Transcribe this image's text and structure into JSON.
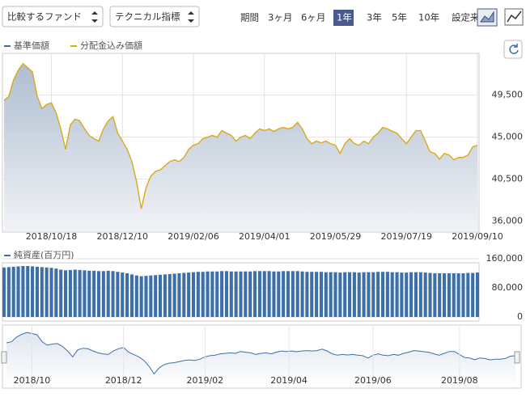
{
  "toolbar": {
    "selects": [
      "比較するファンド",
      "テクニカル指標"
    ],
    "period_label": "期間",
    "periods": [
      "3ヶ月",
      "6ヶ月",
      "1年",
      "3年",
      "5年",
      "10年",
      "設定来"
    ],
    "active_period": 2
  },
  "chart_data": [
    {
      "type": "line",
      "series": [
        {
          "name": "基準価額",
          "color": "#3d6fa8",
          "values": [
            48940,
            49370,
            51120,
            52170,
            52870,
            52430,
            51990,
            49370,
            48060,
            48500,
            48670,
            47620,
            45880,
            43690,
            46310,
            46930,
            46750,
            45880,
            45180,
            44830,
            44570,
            45880,
            46750,
            47190,
            45440,
            44570,
            43690,
            42380,
            40200,
            37310,
            39580,
            40810,
            41330,
            41510,
            41940,
            42380,
            42560,
            42380,
            42820,
            43690,
            44130,
            44300,
            44830,
            45000,
            45180,
            45000,
            45700,
            45440,
            45180,
            44570,
            45000,
            45180,
            44830,
            45440,
            45880,
            45700,
            45880,
            45610,
            45880,
            46050,
            45880,
            46050,
            46580,
            45880,
            44830,
            44300,
            44570,
            44390,
            44570,
            44300,
            44130,
            43250,
            44300,
            44830,
            44300,
            44130,
            44570,
            44300,
            45000,
            45440,
            46050,
            45880,
            45610,
            45440,
            44830,
            44300,
            45000,
            45700,
            45700,
            44570,
            43430,
            43250,
            42640,
            43250,
            43080,
            42560,
            42820,
            42820,
            43080,
            43950,
            44130
          ]
        },
        {
          "name": "分配金込み価額",
          "color": "#e3a90c",
          "values": [
            48940,
            49370,
            51120,
            52170,
            52870,
            52430,
            51990,
            49370,
            48060,
            48500,
            48670,
            47620,
            45880,
            43690,
            46310,
            46930,
            46750,
            45880,
            45180,
            44830,
            44570,
            45880,
            46750,
            47190,
            45440,
            44570,
            43690,
            42380,
            40200,
            37310,
            39580,
            40810,
            41330,
            41510,
            41940,
            42380,
            42560,
            42380,
            42820,
            43690,
            44130,
            44300,
            44830,
            45000,
            45180,
            45000,
            45700,
            45440,
            45180,
            44570,
            45000,
            45180,
            44830,
            45440,
            45880,
            45700,
            45880,
            45610,
            45880,
            46050,
            45880,
            46050,
            46580,
            45880,
            44830,
            44300,
            44570,
            44390,
            44570,
            44300,
            44130,
            43250,
            44300,
            44830,
            44300,
            44130,
            44570,
            44300,
            45000,
            45440,
            46050,
            45880,
            45610,
            45440,
            44830,
            44300,
            45000,
            45700,
            45700,
            44570,
            43430,
            43250,
            42640,
            43250,
            43080,
            42560,
            42820,
            42820,
            43080,
            43950,
            44130
          ]
        }
      ],
      "xlim": [
        0,
        100
      ],
      "xticks": [
        {
          "value": 10,
          "label": "2018/10/18"
        },
        {
          "value": 25,
          "label": "2018/12/10"
        },
        {
          "value": 40,
          "label": "2019/02/06"
        },
        {
          "value": 55,
          "label": "2019/04/01"
        },
        {
          "value": 70,
          "label": "2019/05/29"
        },
        {
          "value": 85,
          "label": "2019/07/19"
        },
        {
          "value": 100,
          "label": "2019/09/10"
        }
      ],
      "ylim": [
        35000,
        53800
      ],
      "yticks": [
        {
          "value": 36000,
          "label": "36,000"
        },
        {
          "value": 40500,
          "label": "40,500"
        },
        {
          "value": 45000,
          "label": "45,000"
        },
        {
          "value": 49500,
          "label": "49,500"
        }
      ],
      "grid": true
    },
    {
      "type": "bar",
      "series": [
        {
          "name": "純資産(百万円)",
          "color": "#3d6fa8",
          "values": [
            136000,
            137000,
            138000,
            139000,
            140000,
            140000,
            139000,
            138000,
            137000,
            136000,
            135000,
            133000,
            130000,
            128000,
            129000,
            130000,
            129000,
            128000,
            127000,
            127000,
            126000,
            126000,
            127000,
            126000,
            124000,
            122000,
            120000,
            117000,
            114000,
            112000,
            113000,
            114000,
            115000,
            116000,
            117000,
            118000,
            119000,
            120000,
            121000,
            122000,
            123000,
            124000,
            124000,
            125000,
            125000,
            125000,
            126000,
            126000,
            125000,
            125000,
            125000,
            125000,
            125000,
            126000,
            126000,
            126000,
            126000,
            125000,
            125000,
            126000,
            126000,
            126000,
            126000,
            125000,
            124000,
            124000,
            124000,
            124000,
            123000,
            123000,
            123000,
            122000,
            123000,
            123000,
            123000,
            122000,
            123000,
            123000,
            123000,
            124000,
            124000,
            124000,
            123000,
            123000,
            122000,
            122000,
            123000,
            123000,
            123000,
            122000,
            121000,
            120000,
            120000,
            120000,
            120000,
            120000,
            120000,
            120000,
            121000,
            121000,
            122000
          ]
        }
      ],
      "xlim": [
        0,
        100
      ],
      "ylim": [
        0,
        160000
      ],
      "yticks": [
        0,
        {
          "value": 80000,
          "label": "80,000"
        },
        {
          "value": 160000,
          "label": "160,000"
        }
      ],
      "grid": true
    },
    {
      "type": "navigator",
      "xlim": [
        0,
        100
      ],
      "ylim": [
        35000,
        53800
      ],
      "xticks": [
        {
          "value": 5,
          "label": "2018/10"
        },
        {
          "value": 23,
          "label": "2018/12"
        },
        {
          "value": 39,
          "label": "2019/02"
        },
        {
          "value": 55.5,
          "label": "2019/04"
        },
        {
          "value": 72,
          "label": "2019/06"
        },
        {
          "value": 89,
          "label": "2019/08"
        }
      ]
    }
  ]
}
